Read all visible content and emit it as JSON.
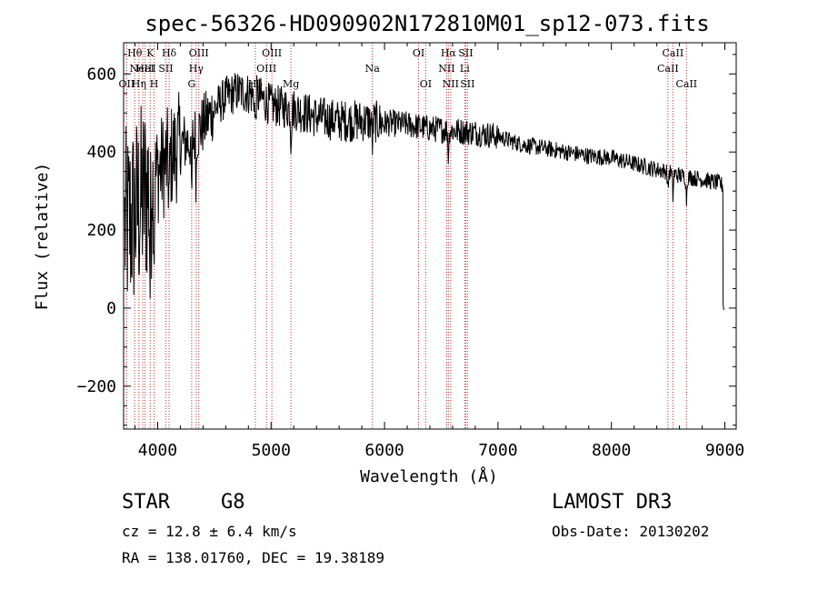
{
  "chart_data": {
    "type": "line",
    "title": "spec-56326-HD090902N172810M01_sp12-073.fits",
    "xlabel": "Wavelength (Å)",
    "ylabel": "Flux (relative)",
    "xlim": [
      3700,
      9100
    ],
    "ylim": [
      -310,
      680
    ],
    "x_ticks": [
      4000,
      5000,
      6000,
      7000,
      8000,
      9000
    ],
    "x_tick_labels": [
      "4000",
      "5000",
      "6000",
      "7000",
      "8000",
      "9000"
    ],
    "y_ticks": [
      -200,
      0,
      200,
      400,
      600
    ],
    "y_tick_labels": [
      "−200",
      "0",
      "200",
      "400",
      "600"
    ],
    "grid": false,
    "spectrum_anchors": {
      "x": [
        3700,
        3800,
        3900,
        4000,
        4100,
        4200,
        4300,
        4400,
        4500,
        4600,
        4700,
        4800,
        4900,
        5000,
        5200,
        5400,
        5600,
        5800,
        6000,
        6200,
        6400,
        6600,
        6800,
        7000,
        7200,
        7400,
        7600,
        7800,
        8000,
        8200,
        8400,
        8500,
        8600,
        8800,
        8950,
        9000
      ],
      "flux": [
        200,
        240,
        300,
        350,
        380,
        420,
        430,
        470,
        510,
        540,
        555,
        550,
        540,
        520,
        510,
        490,
        480,
        480,
        475,
        470,
        460,
        455,
        450,
        440,
        420,
        410,
        400,
        390,
        385,
        370,
        355,
        350,
        340,
        330,
        320,
        310
      ]
    },
    "absorption_features": [
      {
        "x": 3934,
        "depth": 250
      },
      {
        "x": 3969,
        "depth": 180
      },
      {
        "x": 4101,
        "depth": 120
      },
      {
        "x": 4300,
        "depth": 160
      },
      {
        "x": 4340,
        "depth": 120
      },
      {
        "x": 4861,
        "depth": 90
      },
      {
        "x": 5175,
        "depth": 80
      },
      {
        "x": 5893,
        "depth": 60
      },
      {
        "x": 6563,
        "depth": 70
      },
      {
        "x": 8498,
        "depth": 50
      },
      {
        "x": 8542,
        "depth": 60
      },
      {
        "x": 8662,
        "depth": 60
      }
    ],
    "spectral_lines": [
      {
        "x": 3727,
        "label": "OII",
        "row": 3
      },
      {
        "x": 3798,
        "label": "Hθ",
        "row": 1
      },
      {
        "x": 3835,
        "label": "Hη",
        "row": 3
      },
      {
        "x": 3869,
        "label": "NeIII",
        "row": 2
      },
      {
        "x": 3889,
        "label": "HeI",
        "row": 2
      },
      {
        "x": 3934,
        "label": "K",
        "row": 1
      },
      {
        "x": 3969,
        "label": "H",
        "row": 3
      },
      {
        "x": 4072,
        "label": "SII",
        "row": 2
      },
      {
        "x": 4101,
        "label": "Hδ",
        "row": 1
      },
      {
        "x": 4300,
        "label": "G",
        "row": 3
      },
      {
        "x": 4340,
        "label": "Hγ",
        "row": 2
      },
      {
        "x": 4363,
        "label": "OIII",
        "row": 1
      },
      {
        "x": 4861,
        "label": "Hβ",
        "row": 3
      },
      {
        "x": 4959,
        "label": "OIII",
        "row": 2
      },
      {
        "x": 5007,
        "label": "OIII",
        "row": 1
      },
      {
        "x": 5175,
        "label": "Mg",
        "row": 3
      },
      {
        "x": 5893,
        "label": "Na",
        "row": 2
      },
      {
        "x": 6300,
        "label": "OI",
        "row": 1
      },
      {
        "x": 6363,
        "label": "OI",
        "row": 3
      },
      {
        "x": 6548,
        "label": "NII",
        "row": 2
      },
      {
        "x": 6563,
        "label": "Hα",
        "row": 1
      },
      {
        "x": 6583,
        "label": "NII",
        "row": 3
      },
      {
        "x": 6707,
        "label": "Li",
        "row": 2
      },
      {
        "x": 6716,
        "label": "SII",
        "row": 1
      },
      {
        "x": 6731,
        "label": "SII",
        "row": 3
      },
      {
        "x": 8498,
        "label": "CaII",
        "row": 2
      },
      {
        "x": 8542,
        "label": "CaII",
        "row": 1
      },
      {
        "x": 8662,
        "label": "CaII",
        "row": 3
      }
    ]
  },
  "info": {
    "object_type": "STAR",
    "subclass": "G8",
    "survey": "LAMOST DR3",
    "redshift": "cz = 12.8 ± 6.4 km/s",
    "obs_date": "Obs-Date: 20130202",
    "coords": "RA = 138.01760, DEC =  19.38189"
  },
  "colors": {
    "line": "#000000",
    "marker": "#cc2a2a"
  }
}
